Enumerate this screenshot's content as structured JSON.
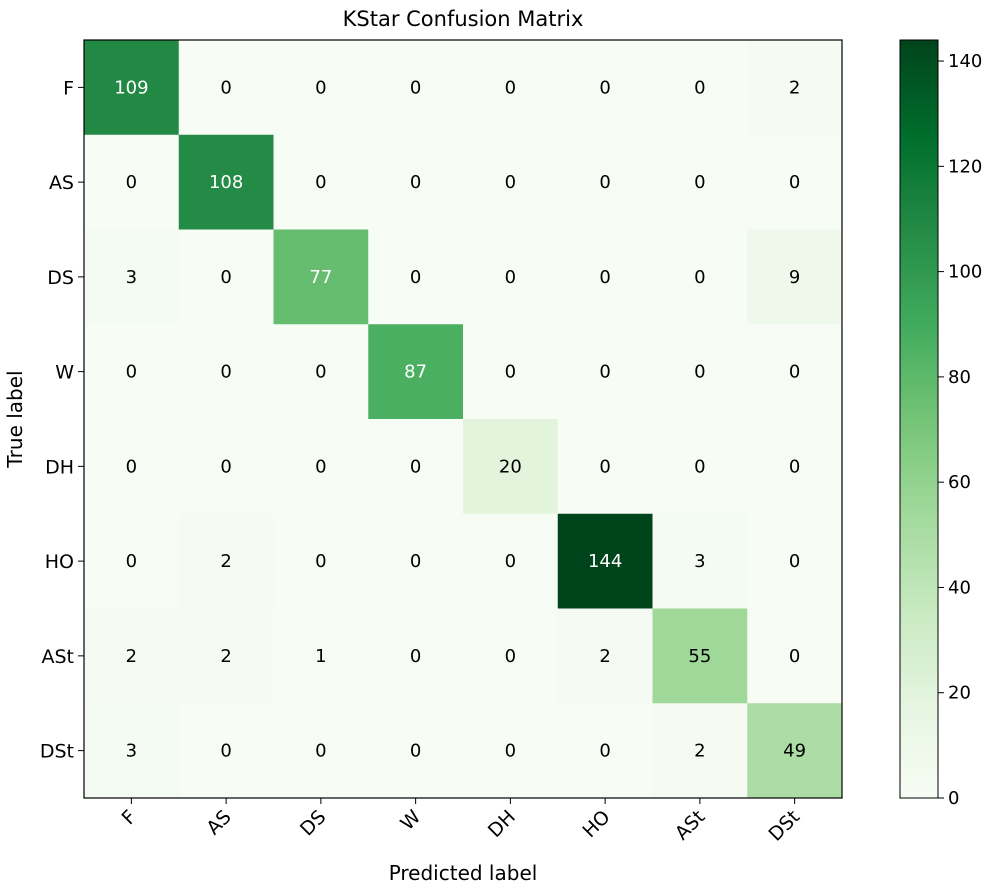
{
  "chart_data": {
    "type": "heatmap",
    "title": "KStar Confusion Matrix",
    "xlabel": "Predicted label",
    "ylabel": "True label",
    "x_categories": [
      "F",
      "AS",
      "DS",
      "W",
      "DH",
      "HO",
      "ASt",
      "DSt"
    ],
    "y_categories": [
      "F",
      "AS",
      "DS",
      "W",
      "DH",
      "HO",
      "ASt",
      "DSt"
    ],
    "values": [
      [
        109,
        0,
        0,
        0,
        0,
        0,
        0,
        2
      ],
      [
        0,
        108,
        0,
        0,
        0,
        0,
        0,
        0
      ],
      [
        3,
        0,
        77,
        0,
        0,
        0,
        0,
        9
      ],
      [
        0,
        0,
        0,
        87,
        0,
        0,
        0,
        0
      ],
      [
        0,
        0,
        0,
        0,
        20,
        0,
        0,
        0
      ],
      [
        0,
        2,
        0,
        0,
        0,
        144,
        3,
        0
      ],
      [
        2,
        2,
        1,
        0,
        0,
        2,
        55,
        0
      ],
      [
        3,
        0,
        0,
        0,
        0,
        0,
        2,
        49
      ]
    ],
    "colormap": "Greens",
    "vmin": 0,
    "vmax": 144,
    "colorbar_ticks": [
      0,
      20,
      40,
      60,
      80,
      100,
      120,
      140
    ],
    "text_threshold": 72
  }
}
